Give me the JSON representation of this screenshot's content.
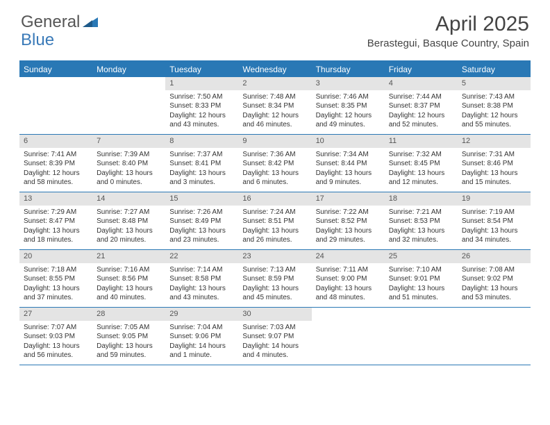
{
  "logo": {
    "text1": "General",
    "text2": "Blue"
  },
  "title": "April 2025",
  "location": "Berastegui, Basque Country, Spain",
  "colors": {
    "header_bg": "#2978b5",
    "header_text": "#ffffff",
    "daynum_bg": "#e4e4e4",
    "border": "#2978b5",
    "text": "#333333",
    "logo_gray": "#555555",
    "logo_blue": "#3a7ab8",
    "background": "#ffffff"
  },
  "day_headers": [
    "Sunday",
    "Monday",
    "Tuesday",
    "Wednesday",
    "Thursday",
    "Friday",
    "Saturday"
  ],
  "weeks": [
    [
      {
        "num": "",
        "sunrise": "",
        "sunset": "",
        "daylight": ""
      },
      {
        "num": "",
        "sunrise": "",
        "sunset": "",
        "daylight": ""
      },
      {
        "num": "1",
        "sunrise": "Sunrise: 7:50 AM",
        "sunset": "Sunset: 8:33 PM",
        "daylight": "Daylight: 12 hours and 43 minutes."
      },
      {
        "num": "2",
        "sunrise": "Sunrise: 7:48 AM",
        "sunset": "Sunset: 8:34 PM",
        "daylight": "Daylight: 12 hours and 46 minutes."
      },
      {
        "num": "3",
        "sunrise": "Sunrise: 7:46 AM",
        "sunset": "Sunset: 8:35 PM",
        "daylight": "Daylight: 12 hours and 49 minutes."
      },
      {
        "num": "4",
        "sunrise": "Sunrise: 7:44 AM",
        "sunset": "Sunset: 8:37 PM",
        "daylight": "Daylight: 12 hours and 52 minutes."
      },
      {
        "num": "5",
        "sunrise": "Sunrise: 7:43 AM",
        "sunset": "Sunset: 8:38 PM",
        "daylight": "Daylight: 12 hours and 55 minutes."
      }
    ],
    [
      {
        "num": "6",
        "sunrise": "Sunrise: 7:41 AM",
        "sunset": "Sunset: 8:39 PM",
        "daylight": "Daylight: 12 hours and 58 minutes."
      },
      {
        "num": "7",
        "sunrise": "Sunrise: 7:39 AM",
        "sunset": "Sunset: 8:40 PM",
        "daylight": "Daylight: 13 hours and 0 minutes."
      },
      {
        "num": "8",
        "sunrise": "Sunrise: 7:37 AM",
        "sunset": "Sunset: 8:41 PM",
        "daylight": "Daylight: 13 hours and 3 minutes."
      },
      {
        "num": "9",
        "sunrise": "Sunrise: 7:36 AM",
        "sunset": "Sunset: 8:42 PM",
        "daylight": "Daylight: 13 hours and 6 minutes."
      },
      {
        "num": "10",
        "sunrise": "Sunrise: 7:34 AM",
        "sunset": "Sunset: 8:44 PM",
        "daylight": "Daylight: 13 hours and 9 minutes."
      },
      {
        "num": "11",
        "sunrise": "Sunrise: 7:32 AM",
        "sunset": "Sunset: 8:45 PM",
        "daylight": "Daylight: 13 hours and 12 minutes."
      },
      {
        "num": "12",
        "sunrise": "Sunrise: 7:31 AM",
        "sunset": "Sunset: 8:46 PM",
        "daylight": "Daylight: 13 hours and 15 minutes."
      }
    ],
    [
      {
        "num": "13",
        "sunrise": "Sunrise: 7:29 AM",
        "sunset": "Sunset: 8:47 PM",
        "daylight": "Daylight: 13 hours and 18 minutes."
      },
      {
        "num": "14",
        "sunrise": "Sunrise: 7:27 AM",
        "sunset": "Sunset: 8:48 PM",
        "daylight": "Daylight: 13 hours and 20 minutes."
      },
      {
        "num": "15",
        "sunrise": "Sunrise: 7:26 AM",
        "sunset": "Sunset: 8:49 PM",
        "daylight": "Daylight: 13 hours and 23 minutes."
      },
      {
        "num": "16",
        "sunrise": "Sunrise: 7:24 AM",
        "sunset": "Sunset: 8:51 PM",
        "daylight": "Daylight: 13 hours and 26 minutes."
      },
      {
        "num": "17",
        "sunrise": "Sunrise: 7:22 AM",
        "sunset": "Sunset: 8:52 PM",
        "daylight": "Daylight: 13 hours and 29 minutes."
      },
      {
        "num": "18",
        "sunrise": "Sunrise: 7:21 AM",
        "sunset": "Sunset: 8:53 PM",
        "daylight": "Daylight: 13 hours and 32 minutes."
      },
      {
        "num": "19",
        "sunrise": "Sunrise: 7:19 AM",
        "sunset": "Sunset: 8:54 PM",
        "daylight": "Daylight: 13 hours and 34 minutes."
      }
    ],
    [
      {
        "num": "20",
        "sunrise": "Sunrise: 7:18 AM",
        "sunset": "Sunset: 8:55 PM",
        "daylight": "Daylight: 13 hours and 37 minutes."
      },
      {
        "num": "21",
        "sunrise": "Sunrise: 7:16 AM",
        "sunset": "Sunset: 8:56 PM",
        "daylight": "Daylight: 13 hours and 40 minutes."
      },
      {
        "num": "22",
        "sunrise": "Sunrise: 7:14 AM",
        "sunset": "Sunset: 8:58 PM",
        "daylight": "Daylight: 13 hours and 43 minutes."
      },
      {
        "num": "23",
        "sunrise": "Sunrise: 7:13 AM",
        "sunset": "Sunset: 8:59 PM",
        "daylight": "Daylight: 13 hours and 45 minutes."
      },
      {
        "num": "24",
        "sunrise": "Sunrise: 7:11 AM",
        "sunset": "Sunset: 9:00 PM",
        "daylight": "Daylight: 13 hours and 48 minutes."
      },
      {
        "num": "25",
        "sunrise": "Sunrise: 7:10 AM",
        "sunset": "Sunset: 9:01 PM",
        "daylight": "Daylight: 13 hours and 51 minutes."
      },
      {
        "num": "26",
        "sunrise": "Sunrise: 7:08 AM",
        "sunset": "Sunset: 9:02 PM",
        "daylight": "Daylight: 13 hours and 53 minutes."
      }
    ],
    [
      {
        "num": "27",
        "sunrise": "Sunrise: 7:07 AM",
        "sunset": "Sunset: 9:03 PM",
        "daylight": "Daylight: 13 hours and 56 minutes."
      },
      {
        "num": "28",
        "sunrise": "Sunrise: 7:05 AM",
        "sunset": "Sunset: 9:05 PM",
        "daylight": "Daylight: 13 hours and 59 minutes."
      },
      {
        "num": "29",
        "sunrise": "Sunrise: 7:04 AM",
        "sunset": "Sunset: 9:06 PM",
        "daylight": "Daylight: 14 hours and 1 minute."
      },
      {
        "num": "30",
        "sunrise": "Sunrise: 7:03 AM",
        "sunset": "Sunset: 9:07 PM",
        "daylight": "Daylight: 14 hours and 4 minutes."
      },
      {
        "num": "",
        "sunrise": "",
        "sunset": "",
        "daylight": ""
      },
      {
        "num": "",
        "sunrise": "",
        "sunset": "",
        "daylight": ""
      },
      {
        "num": "",
        "sunrise": "",
        "sunset": "",
        "daylight": ""
      }
    ]
  ]
}
